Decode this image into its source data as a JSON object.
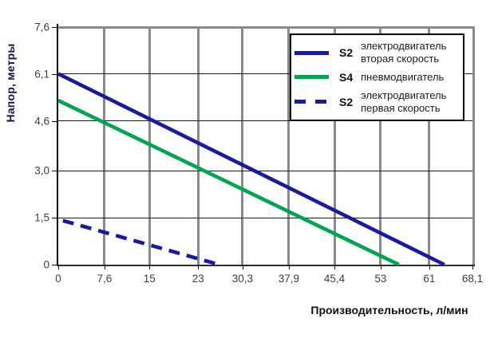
{
  "chart_data": {
    "type": "line",
    "title": "",
    "xlabel": "Производительность, л/мин",
    "ylabel": "Напор, метры",
    "xlim": [
      0,
      68.1
    ],
    "ylim": [
      0,
      7.62
    ],
    "x_ticks": [
      "0",
      "7,6",
      "15",
      "23",
      "30,3",
      "37,9",
      "45,4",
      "53",
      "61",
      "68,1"
    ],
    "x_tick_values": [
      0,
      7.6,
      15,
      23,
      30.3,
      37.9,
      45.4,
      53,
      61,
      68.1
    ],
    "y_ticks": [
      "0",
      "1,5",
      "3,0",
      "4,6",
      "6,1",
      "7,6"
    ],
    "y_tick_values": [
      0,
      1.5,
      3.0,
      4.6,
      6.1,
      7.6
    ],
    "y_grid_values": [
      1.5,
      3.0,
      4.6,
      6.1
    ],
    "grid": {
      "vertical": true,
      "horizontal": true,
      "vertical_color": "#8a8a8a",
      "horizontal_color": "#1a1a1a"
    },
    "legend_position": "top-right",
    "series": [
      {
        "id": "s2-second-speed",
        "name": "S2 электродвигатель вторая скорость",
        "legend_code": "S2",
        "legend_label_lines": [
          "электродвигатель",
          "вторая скорость"
        ],
        "style": "solid",
        "color": "#1a1aa0",
        "points": [
          [
            0,
            6.1
          ],
          [
            63.5,
            0
          ]
        ]
      },
      {
        "id": "s4-pneumatic",
        "name": "S4 пневмодвигатель",
        "legend_code": "S4",
        "legend_label_lines": [
          "пневмодвигатель"
        ],
        "style": "solid",
        "color": "#00a551",
        "points": [
          [
            0,
            5.25
          ],
          [
            56,
            0
          ]
        ]
      },
      {
        "id": "s2-first-speed",
        "name": "S2 электродвигатель первая скорость",
        "legend_code": "S2",
        "legend_label_lines": [
          "электродвигатель",
          "первая скорость"
        ],
        "style": "dashed",
        "color": "#1a1aa0",
        "points": [
          [
            0,
            1.45
          ],
          [
            26.5,
            0
          ]
        ]
      }
    ]
  }
}
